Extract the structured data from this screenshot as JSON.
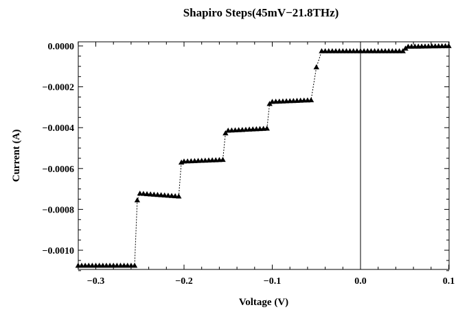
{
  "chart_data": {
    "type": "scatter",
    "title": "Shapiro Steps(45mV−21.8THz)",
    "xlabel": "Voltage (V)",
    "ylabel": "Current (A)",
    "xlim": [
      -0.32,
      0.1
    ],
    "ylim": [
      -0.0011,
      2e-05
    ],
    "grid": false,
    "marker": "triangle",
    "line_style": "dotted",
    "x_ticks": [
      {
        "value": -0.3,
        "label": "−0.3"
      },
      {
        "value": -0.2,
        "label": "−0.2"
      },
      {
        "value": -0.1,
        "label": "−0.1"
      },
      {
        "value": 0.0,
        "label": "0.0"
      },
      {
        "value": 0.1,
        "label": "0.1"
      }
    ],
    "y_ticks": [
      {
        "value": 0.0,
        "label": "0.0000"
      },
      {
        "value": -0.0002,
        "label": "−0.0002"
      },
      {
        "value": -0.0004,
        "label": "−0.0004"
      },
      {
        "value": -0.0006,
        "label": "−0.0006"
      },
      {
        "value": -0.0008,
        "label": "−0.0008"
      },
      {
        "value": -0.001,
        "label": "−0.0010"
      }
    ],
    "vertical_reference_line_x": 0.0,
    "steps": [
      {
        "x_start": -0.32,
        "x_end": -0.256,
        "y_start": -0.001075,
        "y_end": -0.001075
      },
      {
        "x_start": -0.25,
        "x_end": -0.206,
        "y_start": -0.000722,
        "y_end": -0.000736
      },
      {
        "x_start": -0.2,
        "x_end": -0.156,
        "y_start": -0.000565,
        "y_end": -0.000557
      },
      {
        "x_start": -0.15,
        "x_end": -0.106,
        "y_start": -0.000414,
        "y_end": -0.000404
      },
      {
        "x_start": -0.1,
        "x_end": -0.056,
        "y_start": -0.000273,
        "y_end": -0.000265
      },
      {
        "x_start": -0.044,
        "x_end": 0.048,
        "y_start": -2.5e-05,
        "y_end": -2.5e-05
      },
      {
        "x_start": 0.054,
        "x_end": 0.1,
        "y_start": -3e-06,
        "y_end": 0.0
      }
    ],
    "transition_points": [
      {
        "x": -0.253,
        "y": -0.000755
      },
      {
        "x": -0.203,
        "y": -0.00057
      },
      {
        "x": -0.153,
        "y": -0.000427
      },
      {
        "x": -0.103,
        "y": -0.000283
      },
      {
        "x": -0.05,
        "y": -0.000104
      },
      {
        "x": 0.051,
        "y": -1.2e-05
      }
    ],
    "point_spacing": 0.004
  }
}
